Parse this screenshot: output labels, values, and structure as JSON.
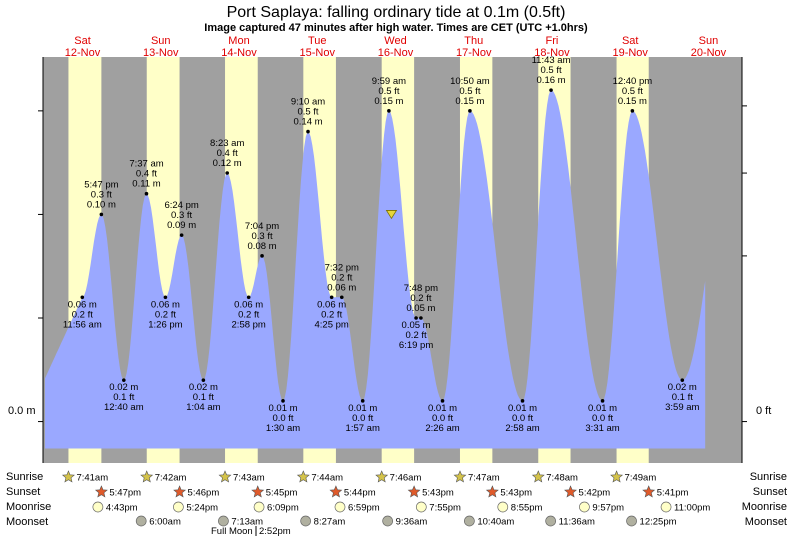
{
  "header": {
    "title": "Port Saplaya: falling  ordinary tide at 0.1m (0.5ft)",
    "subtitle": "Image captured 47 minutes after high water. Times are CET (UTC +1.0hrs)"
  },
  "axis": {
    "left_label": "0.0 m",
    "right_label": "0 ft",
    "ylim_m": [
      -0.02,
      0.176
    ],
    "x_range_hours": [
      0,
      204
    ]
  },
  "days": [
    {
      "name": "Sat",
      "date": "12-Nov"
    },
    {
      "name": "Sun",
      "date": "13-Nov"
    },
    {
      "name": "Mon",
      "date": "14-Nov"
    },
    {
      "name": "Tue",
      "date": "15-Nov"
    },
    {
      "name": "Wed",
      "date": "16-Nov"
    },
    {
      "name": "Thu",
      "date": "17-Nov"
    },
    {
      "name": "Fri",
      "date": "18-Nov"
    },
    {
      "name": "Sat",
      "date": "19-Nov"
    },
    {
      "name": "Sun",
      "date": "20-Nov"
    }
  ],
  "colors": {
    "night": "#a0a0a0",
    "day": "#ffffc8",
    "water": "#9aa8ff",
    "day_label": "#e00000",
    "sunrise_star": "#d4c34a",
    "sunset_star": "#e05a2a"
  },
  "chart_data": {
    "type": "area",
    "x_unit": "hours since Sat 12-Nov 00:00",
    "y_unit": "m",
    "points": [
      {
        "t": 11.93,
        "m": 0.06,
        "ft": "0.2 ft",
        "time": "11:56 am",
        "kind": "low"
      },
      {
        "t": 17.78,
        "m": 0.1,
        "ft": "0.3 ft",
        "time": "5:47 pm",
        "kind": "high"
      },
      {
        "t": 24.67,
        "m": 0.02,
        "ft": "0.1 ft",
        "time": "12:40 am",
        "kind": "low"
      },
      {
        "t": 31.62,
        "m": 0.11,
        "ft": "0.4 ft",
        "time": "7:37 am",
        "kind": "high"
      },
      {
        "t": 37.43,
        "m": 0.06,
        "ft": "0.2 ft",
        "time": "1:26 pm",
        "kind": "low"
      },
      {
        "t": 42.4,
        "m": 0.09,
        "ft": "0.3 ft",
        "time": "6:24 pm",
        "kind": "high"
      },
      {
        "t": 49.07,
        "m": 0.02,
        "ft": "0.1 ft",
        "time": "1:04 am",
        "kind": "low"
      },
      {
        "t": 56.38,
        "m": 0.12,
        "ft": "0.4 ft",
        "time": "8:23 am",
        "kind": "high"
      },
      {
        "t": 62.97,
        "m": 0.06,
        "ft": "0.2 ft",
        "time": "2:58 pm",
        "kind": "low"
      },
      {
        "t": 67.07,
        "m": 0.08,
        "ft": "0.3 ft",
        "time": "7:04 pm",
        "kind": "high"
      },
      {
        "t": 73.5,
        "m": 0.01,
        "ft": "0.0 ft",
        "time": "1:30 am",
        "kind": "low"
      },
      {
        "t": 81.17,
        "m": 0.14,
        "ft": "0.5 ft",
        "time": "9:10 am",
        "kind": "high"
      },
      {
        "t": 88.42,
        "m": 0.06,
        "ft": "0.2 ft",
        "time": "4:25 pm",
        "kind": "low"
      },
      {
        "t": 91.53,
        "m": 0.06,
        "ft": "0.2 ft",
        "time": "7:32 pm",
        "kind": "high"
      },
      {
        "t": 97.95,
        "m": 0.01,
        "ft": "0.0 ft",
        "time": "1:57 am",
        "kind": "low"
      },
      {
        "t": 105.98,
        "m": 0.15,
        "ft": "0.5 ft",
        "time": "9:59 am",
        "kind": "high"
      },
      {
        "t": 114.32,
        "m": 0.05,
        "ft": "0.2 ft",
        "time": "6:19 pm",
        "kind": "low"
      },
      {
        "t": 115.8,
        "m": 0.05,
        "ft": "0.2 ft",
        "time": "7:48 pm",
        "kind": "high"
      },
      {
        "t": 122.43,
        "m": 0.01,
        "ft": "0.0 ft",
        "time": "2:26 am",
        "kind": "low"
      },
      {
        "t": 130.83,
        "m": 0.15,
        "ft": "0.5 ft",
        "time": "10:50 am",
        "kind": "high"
      },
      {
        "t": 146.97,
        "m": 0.01,
        "ft": "0.0 ft",
        "time": "2:58 am",
        "kind": "low"
      },
      {
        "t": 155.72,
        "m": 0.16,
        "ft": "0.5 ft",
        "time": "11:43 am",
        "kind": "high"
      },
      {
        "t": 171.52,
        "m": 0.01,
        "ft": "0.0 ft",
        "time": "3:31 am",
        "kind": "low"
      },
      {
        "t": 180.67,
        "m": 0.15,
        "ft": "0.5 ft",
        "time": "12:40 pm",
        "kind": "high"
      },
      {
        "t": 195.98,
        "m": 0.02,
        "ft": "0.1 ft",
        "time": "3:59 am",
        "kind": "low"
      }
    ],
    "now_marker": {
      "t": 106.77,
      "m": 0.1
    }
  },
  "legend": {
    "sunrise": "Sunrise",
    "sunset": "Sunset",
    "moonrise": "Moonrise",
    "moonset": "Moonset",
    "full_moon": "Full Moon",
    "full_moon_time": "2:52pm"
  },
  "sun": {
    "sunrise": [
      "7:41am",
      "7:42am",
      "7:43am",
      "7:44am",
      "7:46am",
      "7:47am",
      "7:48am",
      "7:49am"
    ],
    "sunset": [
      "5:47pm",
      "5:46pm",
      "5:45pm",
      "5:44pm",
      "5:43pm",
      "5:43pm",
      "5:42pm",
      "5:41pm"
    ],
    "moonrise": [
      "4:43pm",
      "5:24pm",
      "6:09pm",
      "6:59pm",
      "7:55pm",
      "8:55pm",
      "9:57pm",
      "11:00pm"
    ],
    "moonset": [
      "6:00am",
      "7:13am",
      "8:27am",
      "9:36am",
      "10:40am",
      "11:36am",
      "12:25pm"
    ]
  }
}
